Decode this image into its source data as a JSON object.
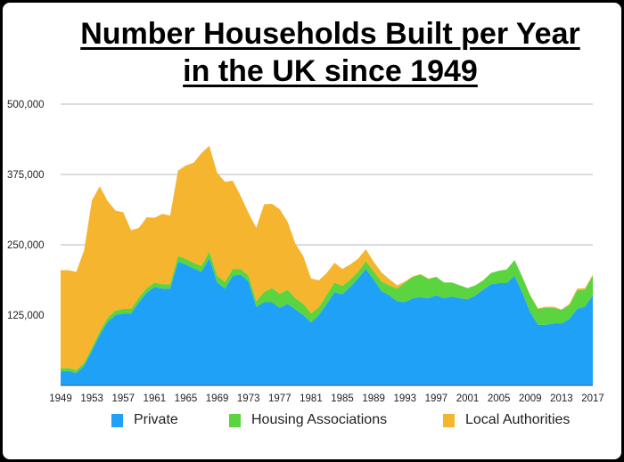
{
  "chart_data": {
    "type": "area",
    "stacked": true,
    "title": "Number Households Built per Year in the UK since 1949",
    "title_lines": [
      "Number Households Built per Year",
      "in the UK since 1949"
    ],
    "xlabel": "",
    "ylabel": "",
    "ylim": [
      0,
      500000
    ],
    "yticks": [
      "500,000",
      "375,000",
      "250,000",
      "125,000"
    ],
    "ytick_values": [
      500000,
      375000,
      250000,
      125000
    ],
    "xticks": [
      "1949",
      "1953",
      "1957",
      "1961",
      "1965",
      "1969",
      "1973",
      "1977",
      "1981",
      "1985",
      "1989",
      "1993",
      "1997",
      "2001",
      "2005",
      "2009",
      "2013",
      "2017"
    ],
    "grid": true,
    "legend_position": "bottom",
    "x": [
      1949,
      1950,
      1951,
      1952,
      1953,
      1954,
      1955,
      1956,
      1957,
      1958,
      1959,
      1960,
      1961,
      1962,
      1963,
      1964,
      1965,
      1966,
      1967,
      1968,
      1969,
      1970,
      1971,
      1972,
      1973,
      1974,
      1975,
      1976,
      1977,
      1978,
      1979,
      1980,
      1981,
      1982,
      1983,
      1984,
      1985,
      1986,
      1987,
      1988,
      1989,
      1990,
      1991,
      1992,
      1993,
      1994,
      1995,
      1996,
      1997,
      1998,
      1999,
      2000,
      2001,
      2002,
      2003,
      2004,
      2005,
      2006,
      2007,
      2008,
      2009,
      2010,
      2011,
      2012,
      2013,
      2014,
      2015,
      2016,
      2017
    ],
    "series": [
      {
        "name": "Private",
        "color": "#1ea1f7",
        "values": [
          25000,
          26000,
          22000,
          35000,
          62000,
          90000,
          113000,
          125000,
          128000,
          128000,
          148000,
          165000,
          175000,
          172000,
          172000,
          220000,
          215000,
          208000,
          202000,
          226000,
          183000,
          172000,
          195000,
          197000,
          185000,
          140000,
          148000,
          148000,
          138000,
          145000,
          135000,
          125000,
          112000,
          125000,
          145000,
          166000,
          162000,
          175000,
          190000,
          207000,
          188000,
          168000,
          160000,
          150000,
          148000,
          155000,
          157000,
          155000,
          160000,
          155000,
          158000,
          155000,
          153000,
          160000,
          170000,
          180000,
          182000,
          182000,
          195000,
          165000,
          130000,
          108000,
          108000,
          110000,
          110000,
          118000,
          136000,
          140000,
          160000
        ]
      },
      {
        "name": "Housing Associations",
        "color": "#5ad43f",
        "values": [
          5000,
          5000,
          5000,
          5000,
          5000,
          6000,
          7000,
          8000,
          8000,
          8000,
          8000,
          8000,
          8000,
          8000,
          8000,
          10000,
          10000,
          10000,
          10000,
          12000,
          12000,
          12000,
          12000,
          10000,
          10000,
          10000,
          18000,
          25000,
          25000,
          25000,
          20000,
          20000,
          16000,
          14000,
          16000,
          17000,
          15000,
          13000,
          12000,
          14000,
          15000,
          17000,
          18000,
          22000,
          35000,
          38000,
          40000,
          34000,
          33000,
          28000,
          25000,
          23000,
          20000,
          18000,
          17000,
          20000,
          22000,
          24000,
          28000,
          28000,
          30000,
          28000,
          30000,
          28000,
          24000,
          25000,
          33000,
          30000,
          35000
        ]
      },
      {
        "name": "Local Authorities",
        "color": "#f5b52e",
        "values": [
          175000,
          174000,
          175000,
          200000,
          262000,
          258000,
          208000,
          178000,
          172000,
          140000,
          124000,
          126000,
          115000,
          125000,
          122000,
          152000,
          166000,
          178000,
          201000,
          188000,
          183000,
          178000,
          157000,
          130000,
          112000,
          130000,
          156000,
          150000,
          150000,
          121000,
          97000,
          85000,
          62000,
          48000,
          39000,
          35000,
          30000,
          27000,
          23000,
          21000,
          17000,
          16000,
          11000,
          6000,
          2000,
          1000,
          1000,
          1000,
          0,
          0,
          0,
          0,
          0,
          0,
          0,
          0,
          0,
          0,
          0,
          0,
          1000,
          1000,
          2000,
          2000,
          1000,
          2000,
          3000,
          3000,
          2000
        ]
      }
    ]
  }
}
